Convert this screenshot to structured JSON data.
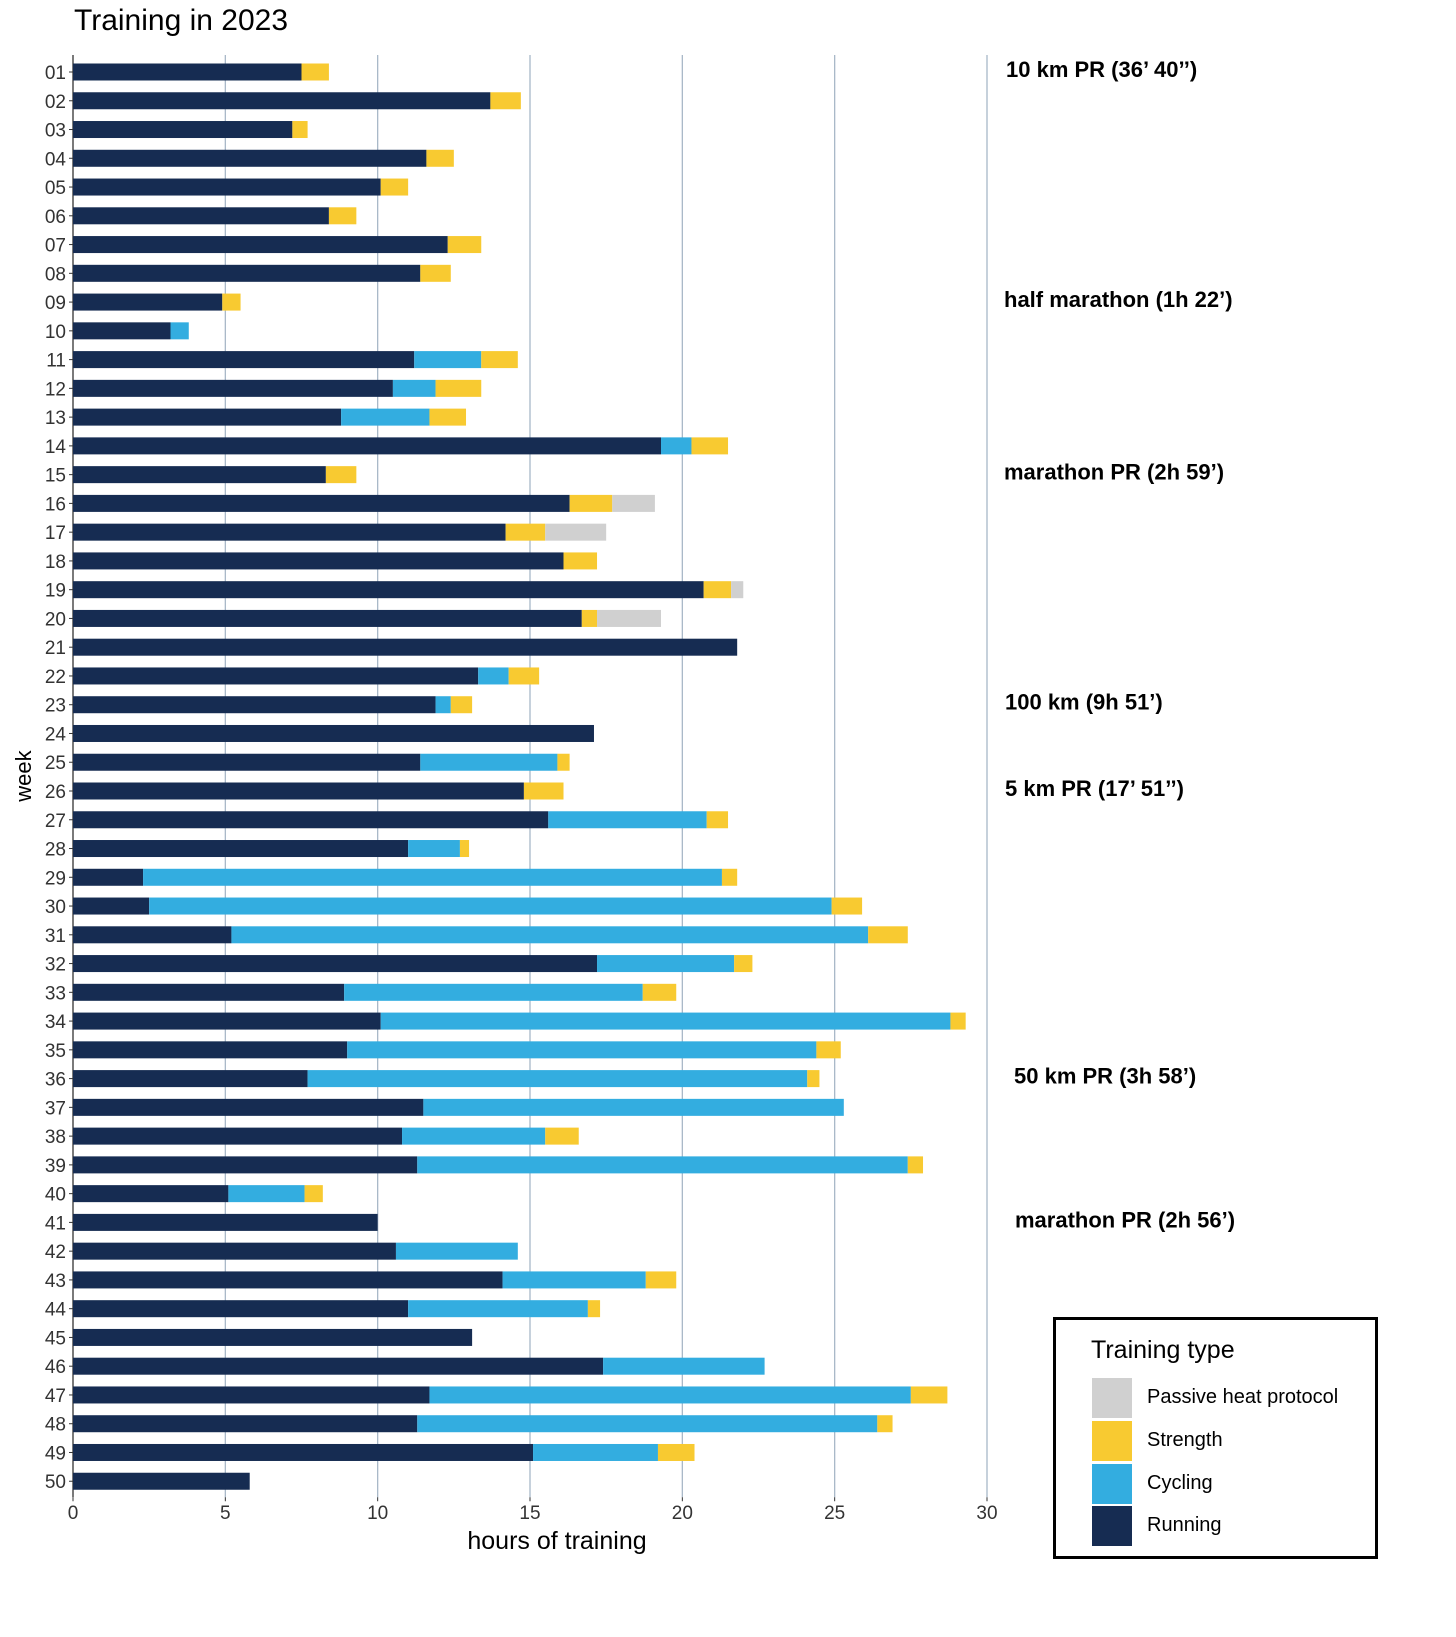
{
  "chart_data": {
    "type": "bar",
    "orientation": "horizontal",
    "stacked": true,
    "title": "Training in 2023",
    "xlabel": "hours of training",
    "ylabel": "week",
    "xlim": [
      0,
      30
    ],
    "xticks": [
      "0",
      "5",
      "10",
      "15",
      "20",
      "25",
      "30"
    ],
    "grid": "vertical",
    "legend_title": "Training type",
    "legend_placement": "bottom-right",
    "categories": [
      "01",
      "02",
      "03",
      "04",
      "05",
      "06",
      "07",
      "08",
      "09",
      "10",
      "11",
      "12",
      "13",
      "14",
      "15",
      "16",
      "17",
      "18",
      "19",
      "20",
      "21",
      "22",
      "23",
      "24",
      "25",
      "26",
      "27",
      "28",
      "29",
      "30",
      "31",
      "32",
      "33",
      "34",
      "35",
      "36",
      "37",
      "38",
      "39",
      "40",
      "41",
      "42",
      "43",
      "44",
      "45",
      "46",
      "47",
      "48",
      "49",
      "50"
    ],
    "series": [
      {
        "name": "Running",
        "color": "#162c52",
        "values": [
          7.5,
          13.7,
          7.2,
          11.6,
          10.1,
          8.4,
          12.3,
          11.4,
          4.9,
          3.2,
          11.2,
          10.5,
          8.8,
          19.3,
          8.3,
          16.3,
          14.2,
          16.1,
          20.7,
          16.7,
          21.8,
          13.3,
          11.9,
          17.1,
          11.4,
          14.8,
          15.6,
          11.0,
          2.3,
          2.5,
          5.2,
          17.2,
          8.9,
          10.1,
          9.0,
          7.7,
          11.5,
          10.8,
          11.3,
          5.1,
          10.0,
          10.6,
          14.1,
          11.0,
          13.1,
          17.4,
          11.7,
          11.3,
          15.1,
          5.8
        ]
      },
      {
        "name": "Cycling",
        "color": "#33ade0",
        "values": [
          0,
          0,
          0,
          0,
          0,
          0,
          0,
          0,
          0,
          0.6,
          2.2,
          1.4,
          2.9,
          1.0,
          0,
          0,
          0,
          0,
          0,
          0,
          0,
          1.0,
          0.5,
          0,
          4.5,
          0,
          5.2,
          1.7,
          19.0,
          22.4,
          20.9,
          4.5,
          9.8,
          18.7,
          15.4,
          16.4,
          13.8,
          4.7,
          16.1,
          2.5,
          0,
          4.0,
          4.7,
          5.9,
          0,
          5.3,
          15.8,
          15.1,
          4.1,
          0
        ]
      },
      {
        "name": "Strength",
        "color": "#f8ca31",
        "values": [
          0.9,
          1.0,
          0.5,
          0.9,
          0.9,
          0.9,
          1.1,
          1.0,
          0.6,
          0,
          1.2,
          1.5,
          1.2,
          1.2,
          1.0,
          1.4,
          1.3,
          1.1,
          0.9,
          0.5,
          0,
          1.0,
          0.7,
          0,
          0.4,
          1.3,
          0.7,
          0.3,
          0.5,
          1.0,
          1.3,
          0.6,
          1.1,
          0.5,
          0.8,
          0.4,
          0,
          1.1,
          0.5,
          0.6,
          0,
          0,
          1.0,
          0.4,
          0,
          0,
          1.2,
          0.5,
          1.2,
          0
        ]
      },
      {
        "name": "Passive heat protocol",
        "color": "#d0d0d0",
        "values": [
          0,
          0,
          0,
          0,
          0,
          0,
          0,
          0,
          0,
          0,
          0,
          0,
          0,
          0,
          0,
          1.4,
          2.0,
          0,
          0.4,
          2.1,
          0,
          0,
          0,
          0,
          0,
          0,
          0,
          0,
          0,
          0,
          0,
          0,
          0,
          0,
          0,
          0,
          0,
          0,
          0,
          0,
          0,
          0,
          0,
          0,
          0,
          0,
          0,
          0,
          0,
          0
        ]
      }
    ],
    "legend_order": [
      "Passive heat protocol",
      "Strength",
      "Cycling",
      "Running"
    ],
    "annotations": [
      {
        "week": "01",
        "text": "10 km PR (36’ 40’’)"
      },
      {
        "week": "09",
        "text": "half marathon (1h 22’)"
      },
      {
        "week": "15",
        "text": "marathon PR (2h 59’)"
      },
      {
        "week": "23",
        "text": "100 km (9h 51’)"
      },
      {
        "week": "26",
        "text": "5 km PR (17’ 51’’)"
      },
      {
        "week": "36",
        "text": "50 km PR (3h 58’)"
      },
      {
        "week": "41",
        "text": "marathon PR (2h 56’)"
      }
    ]
  },
  "legend": {
    "title": "Training type",
    "items": [
      {
        "label": "Passive heat protocol",
        "color": "#d0d0d0"
      },
      {
        "label": "Strength",
        "color": "#f8ca31"
      },
      {
        "label": "Cycling",
        "color": "#33ade0"
      },
      {
        "label": "Running",
        "color": "#162c52"
      }
    ]
  }
}
